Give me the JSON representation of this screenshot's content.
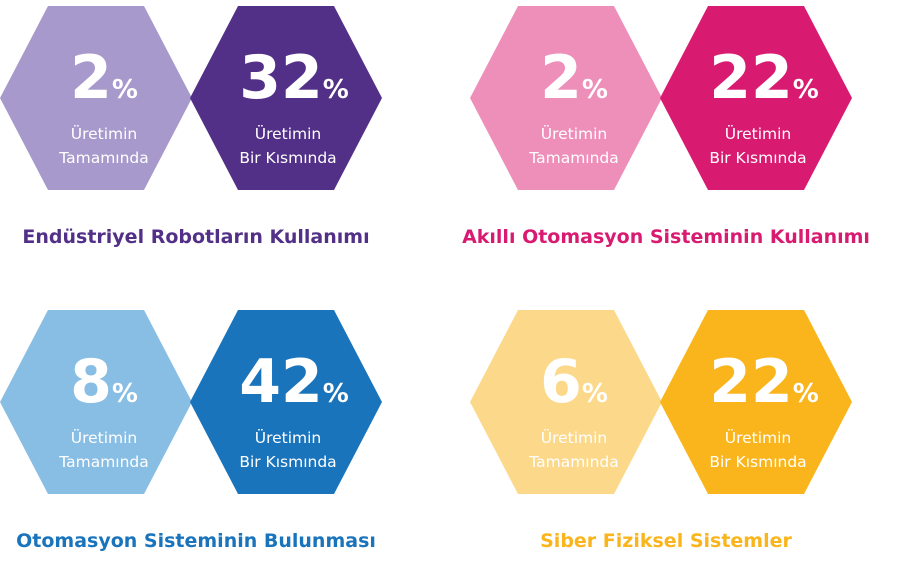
{
  "chart_data": [
    {
      "type": "bar",
      "title": "Endüstriyel Robotların Kullanımı",
      "categories": [
        "Üretimin Tamamında",
        "Üretimin Bir Kısmında"
      ],
      "values": [
        2,
        32
      ],
      "value_suffix": "%",
      "labels": [
        {
          "line1": "Üretimin",
          "line2": "Tamamında"
        },
        {
          "line1": "Üretimin",
          "line2": "Bir Kısmında"
        }
      ],
      "colors": {
        "light": "#a899cc",
        "dark": "#533087",
        "caption": "#533087"
      }
    },
    {
      "type": "bar",
      "title": "Akıllı Otomasyon Sisteminin Kullanımı",
      "categories": [
        "Üretimin Tamamında",
        "Üretimin Bir Kısmında"
      ],
      "values": [
        2,
        22
      ],
      "value_suffix": "%",
      "labels": [
        {
          "line1": "Üretimin",
          "line2": "Tamamında"
        },
        {
          "line1": "Üretimin",
          "line2": "Bir Kısmında"
        }
      ],
      "colors": {
        "light": "#ee8fba",
        "dark": "#d91a71",
        "caption": "#d91a71"
      }
    },
    {
      "type": "bar",
      "title": "Otomasyon Sisteminin Bulunması",
      "categories": [
        "Üretimin Tamamında",
        "Üretimin Bir Kısmında"
      ],
      "values": [
        8,
        42
      ],
      "value_suffix": "%",
      "labels": [
        {
          "line1": "Üretimin",
          "line2": "Tamamında"
        },
        {
          "line1": "Üretimin",
          "line2": "Bir Kısmında"
        }
      ],
      "colors": {
        "light": "#88bde4",
        "dark": "#1a74bc",
        "caption": "#1a74bc"
      }
    },
    {
      "type": "bar",
      "title": "Siber Fiziksel Sistemler",
      "categories": [
        "Üretimin Tamamında",
        "Üretimin Bir Kısmında"
      ],
      "values": [
        6,
        22
      ],
      "value_suffix": "%",
      "labels": [
        {
          "line1": "Üretimin",
          "line2": "Tamamında"
        },
        {
          "line1": "Üretimin",
          "line2": "Bir Kısmında"
        }
      ],
      "colors": {
        "light": "#fcd98a",
        "dark": "#fab51c",
        "caption": "#fab51c"
      }
    }
  ]
}
